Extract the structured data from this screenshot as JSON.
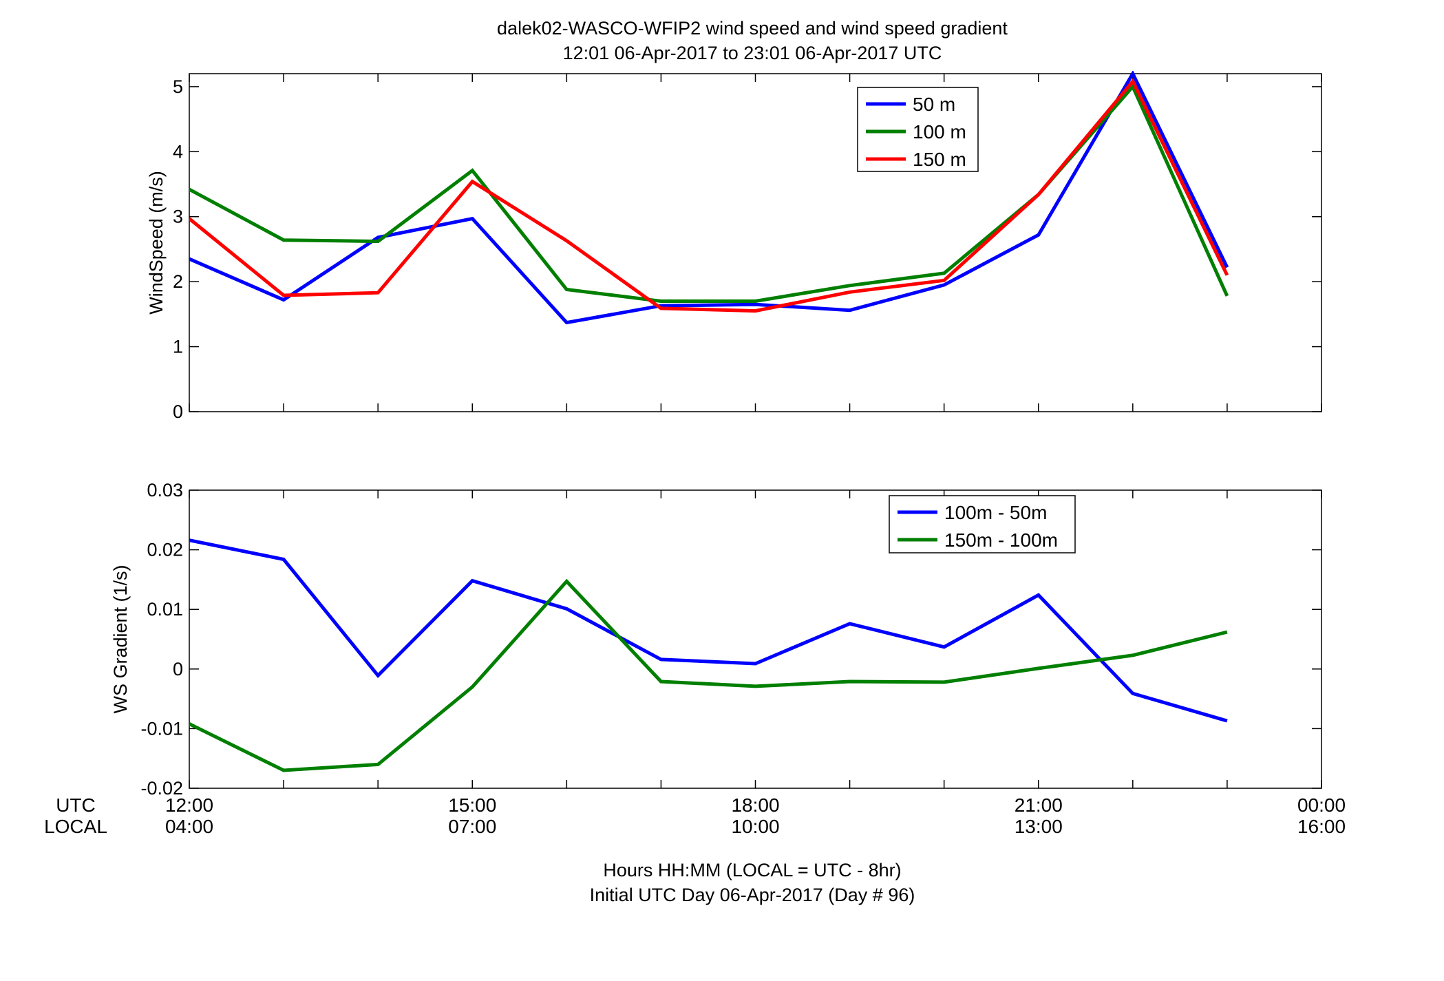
{
  "figure": {
    "title_line1": "dalek02-WASCO-WFIP2  wind speed and wind speed gradient",
    "title_line2": "12:01 06-Apr-2017 to 23:01 06-Apr-2017  UTC",
    "row_label_utc": "UTC",
    "row_label_local": "LOCAL",
    "footer_line1": "Hours HH:MM  (LOCAL = UTC - 8hr)",
    "footer_line2": "Initial UTC Day 06-Apr-2017 (Day # 96)"
  },
  "colors": {
    "blue": "#0000ff",
    "green": "#007f00",
    "red": "#ff0000"
  },
  "chart_data": [
    {
      "type": "line",
      "ylabel": "WindSpeed (m/s)",
      "xlim": [
        12,
        24
      ],
      "ylim": [
        0,
        5.2
      ],
      "yticks": [
        0,
        1,
        2,
        3,
        4,
        5
      ],
      "ytick_labels": [
        "0",
        "1",
        "2",
        "3",
        "4",
        "5"
      ],
      "x": [
        12,
        13,
        14,
        15,
        16,
        17,
        18,
        19,
        20,
        21,
        22,
        23
      ],
      "legend_position": "top-right",
      "series": [
        {
          "name": "50 m",
          "color": "#0000ff",
          "values": [
            2.35,
            1.72,
            2.68,
            2.97,
            1.37,
            1.63,
            1.65,
            1.56,
            1.95,
            2.72,
            5.2,
            2.22
          ]
        },
        {
          "name": "100 m",
          "color": "#007f00",
          "values": [
            3.42,
            2.64,
            2.62,
            3.71,
            1.88,
            1.7,
            1.7,
            1.94,
            2.13,
            3.34,
            5.0,
            1.78
          ]
        },
        {
          "name": "150 m",
          "color": "#ff0000",
          "values": [
            2.97,
            1.79,
            1.83,
            3.54,
            2.63,
            1.59,
            1.55,
            1.84,
            2.02,
            3.34,
            5.08,
            2.1
          ]
        }
      ]
    },
    {
      "type": "line",
      "ylabel": "WS Gradient (1/s)",
      "xlim": [
        12,
        24
      ],
      "ylim": [
        -0.02,
        0.03
      ],
      "yticks": [
        -0.02,
        -0.01,
        0,
        0.01,
        0.02,
        0.03
      ],
      "ytick_labels": [
        "-0.02",
        "-0.01",
        "0",
        "0.01",
        "0.02",
        "0.03"
      ],
      "x": [
        12,
        13,
        14,
        15,
        16,
        17,
        18,
        19,
        20,
        21,
        22,
        23
      ],
      "legend_position": "top-right",
      "series": [
        {
          "name": "100m - 50m",
          "color": "#0000ff",
          "values": [
            0.0216,
            0.0184,
            -0.0011,
            0.0148,
            0.0101,
            0.0016,
            0.0009,
            0.0076,
            0.0037,
            0.0124,
            -0.0041,
            -0.0087
          ]
        },
        {
          "name": "150m - 100m",
          "color": "#007f00",
          "values": [
            -0.0092,
            -0.017,
            -0.016,
            -0.003,
            0.0147,
            -0.0021,
            -0.0029,
            -0.0021,
            -0.0022,
            0.0001,
            0.0023,
            0.0062
          ]
        }
      ]
    }
  ],
  "x_axis": {
    "major_ticks": [
      12,
      15,
      18,
      21,
      24
    ],
    "utc_labels": [
      "12:00",
      "15:00",
      "18:00",
      "21:00",
      "00:00"
    ],
    "local_labels": [
      "04:00",
      "07:00",
      "10:00",
      "13:00",
      "16:00"
    ]
  }
}
